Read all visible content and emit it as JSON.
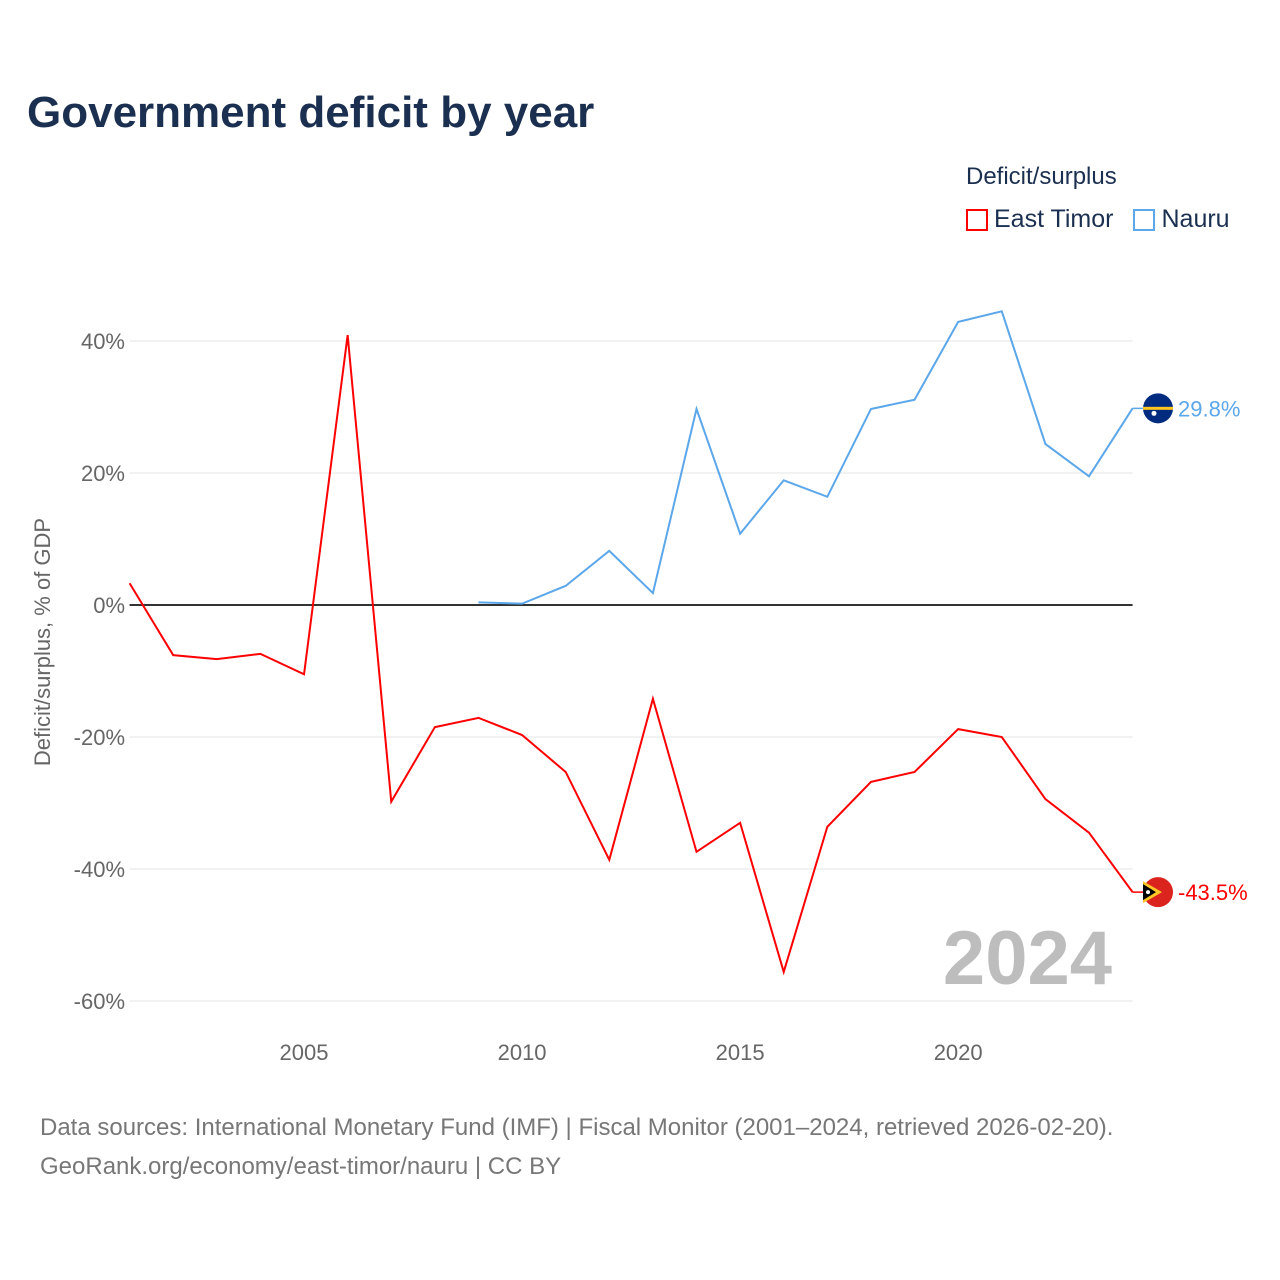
{
  "title": "Government deficit by year",
  "legend": {
    "title": "Deficit/surplus",
    "items": [
      {
        "label": "East Timor",
        "color": "#ff0000"
      },
      {
        "label": "Nauru",
        "color": "#5ba7ea"
      }
    ]
  },
  "source": {
    "line1": "Data sources: International Monetary Fund (IMF) | Fiscal Monitor (2001–2024, retrieved 2026-02-20).",
    "line2": "GeoRank.org/economy/east-timor/nauru | CC BY"
  },
  "chart_data": {
    "type": "line",
    "title": "Government deficit by year",
    "ylabel": "Deficit/surplus, % of GDP",
    "xlabel": "",
    "xlim": [
      2001,
      2024
    ],
    "ylim": [
      -60,
      45
    ],
    "x_ticks": [
      2005,
      2010,
      2015,
      2020
    ],
    "x_tick_labels": [
      "2005",
      "2010",
      "2015",
      "2020"
    ],
    "y_ticks": [
      40,
      20,
      0,
      -20,
      -40,
      -60
    ],
    "y_tick_labels": [
      "40%",
      "20%",
      "0%",
      "-20%",
      "-40%",
      "-60%"
    ],
    "watermark_year": "2024",
    "series": [
      {
        "name": "East Timor",
        "color": "#ff0000",
        "end_label": "-43.5%",
        "x": [
          2001,
          2002,
          2003,
          2004,
          2005,
          2006,
          2007,
          2008,
          2009,
          2010,
          2011,
          2012,
          2013,
          2014,
          2015,
          2016,
          2017,
          2018,
          2019,
          2020,
          2021,
          2022,
          2023,
          2024
        ],
        "values": [
          3.3,
          -7.6,
          -8.2,
          -7.4,
          -10.5,
          40.9,
          -29.8,
          -18.5,
          -17.1,
          -19.7,
          -25.3,
          -38.6,
          -14.2,
          -37.4,
          -33.0,
          -55.6,
          -33.6,
          -26.8,
          -25.3,
          -18.8,
          -20.0,
          -29.4,
          -34.5,
          -43.5
        ]
      },
      {
        "name": "Nauru",
        "color": "#5ba7ea",
        "end_label": "29.8%",
        "x": [
          2009,
          2010,
          2011,
          2012,
          2013,
          2014,
          2015,
          2016,
          2017,
          2018,
          2019,
          2020,
          2021,
          2022,
          2023,
          2024
        ],
        "values": [
          0.4,
          0.2,
          2.9,
          8.2,
          1.8,
          29.7,
          10.8,
          18.9,
          16.4,
          29.7,
          31.1,
          42.9,
          44.5,
          24.4,
          19.5,
          29.8
        ]
      }
    ]
  }
}
